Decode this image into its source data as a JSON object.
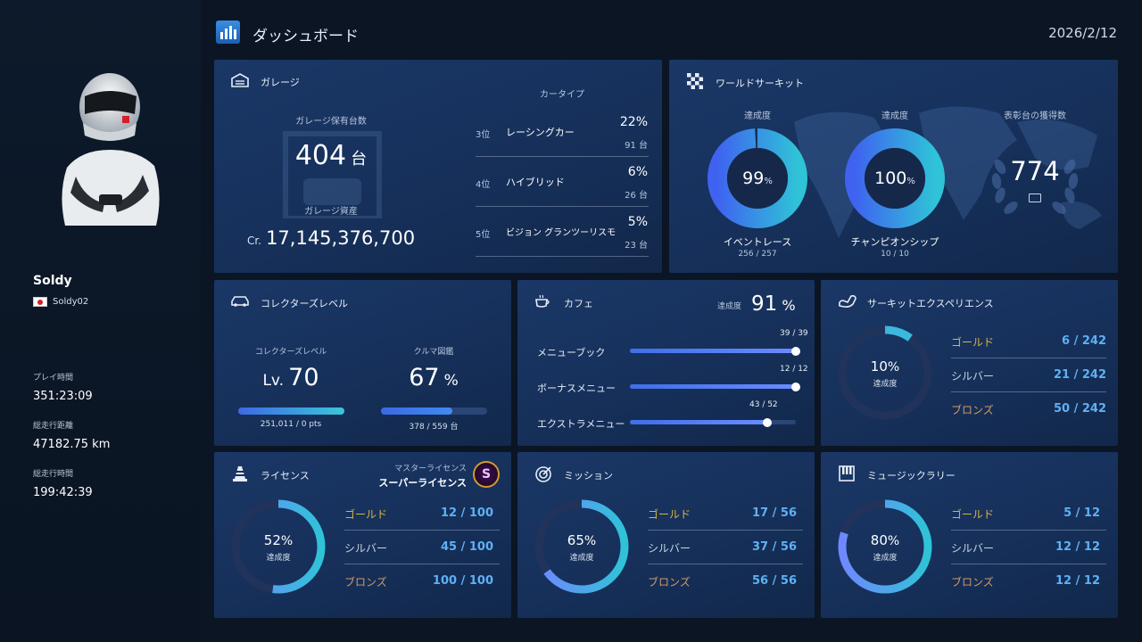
{
  "header": {
    "title": "ダッシュボード",
    "date": "2026/2/12"
  },
  "profile": {
    "name": "Soldy",
    "id": "Soldy02",
    "stats": [
      {
        "label": "プレイ時間",
        "value": "351:23:09"
      },
      {
        "label": "総走行距離",
        "value": "47182.75 km"
      },
      {
        "label": "総走行時間",
        "value": "199:42:39"
      }
    ]
  },
  "garage": {
    "title": "ガレージ",
    "count_label": "ガレージ保有台数",
    "count_value": "404",
    "count_unit": "台",
    "assets_label": "ガレージ資産",
    "assets_prefix": "Cr.",
    "assets_value": "17,145,376,700",
    "car_type_label": "カータイプ",
    "car_types": [
      {
        "rank": "3位",
        "name": "レーシングカー",
        "percent": "22%",
        "count": "91 台"
      },
      {
        "rank": "4位",
        "name": "ハイブリッド",
        "percent": "6%",
        "count": "26 台"
      },
      {
        "rank": "5位",
        "name": "ビジョン グランツーリスモ",
        "percent": "5%",
        "count": "23 台"
      }
    ]
  },
  "world_circuit": {
    "title": "ワールドサーキット",
    "rings": [
      {
        "label_top": "達成度",
        "percent": "99",
        "unit": "%",
        "name": "イベントレース",
        "progress": "256 / 257",
        "fraction": 0.99
      },
      {
        "label_top": "達成度",
        "percent": "100",
        "unit": "%",
        "name": "チャンピオンシップ",
        "progress": "10 / 10",
        "fraction": 1.0
      }
    ],
    "podium_label": "表彰台の獲得数",
    "podium_value": "774"
  },
  "collectors": {
    "title": "コレクターズレベル",
    "level_label": "コレクターズレベル",
    "level_prefix": "Lv.",
    "level_value": "70",
    "level_pts": "251,011 / 0 pts",
    "level_fraction": 1.0,
    "book_label": "クルマ図鑑",
    "book_value": "67",
    "book_unit": "%",
    "book_progress": "378 / 559 台",
    "book_fraction": 0.67
  },
  "cafe": {
    "title": "カフェ",
    "rate_label": "達成度",
    "rate_value": "91",
    "rate_unit": "%",
    "items": [
      {
        "name": "メニューブック",
        "progress": "39 / 39",
        "fraction": 1.0
      },
      {
        "name": "ボーナスメニュー",
        "progress": "12 / 12",
        "fraction": 1.0
      },
      {
        "name": "エクストラメニュー",
        "progress": "43 / 52",
        "fraction": 0.827
      }
    ]
  },
  "circuit_experience": {
    "title": "サーキットエクスペリエンス",
    "percent": "10",
    "unit": "%",
    "rate_label": "達成度",
    "fraction": 0.1,
    "medals": [
      {
        "label": "ゴールド",
        "value": "6 / 242"
      },
      {
        "label": "シルバー",
        "value": "21 / 242"
      },
      {
        "label": "ブロンズ",
        "value": "50 / 242"
      }
    ]
  },
  "license": {
    "title": "ライセンス",
    "master_label": "マスターライセンス",
    "master_value": "スーパーライセンス",
    "badge_letter": "S",
    "percent": "52",
    "unit": "%",
    "rate_label": "達成度",
    "fraction": 0.52,
    "medals": [
      {
        "label": "ゴールド",
        "value": "12 / 100"
      },
      {
        "label": "シルバー",
        "value": "45 / 100"
      },
      {
        "label": "ブロンズ",
        "value": "100 / 100"
      }
    ]
  },
  "mission": {
    "title": "ミッション",
    "percent": "65",
    "unit": "%",
    "rate_label": "達成度",
    "fraction": 0.65,
    "medals": [
      {
        "label": "ゴールド",
        "value": "17 / 56"
      },
      {
        "label": "シルバー",
        "value": "37 / 56"
      },
      {
        "label": "ブロンズ",
        "value": "56 / 56"
      }
    ]
  },
  "music_rally": {
    "title": "ミュージックラリー",
    "percent": "80",
    "unit": "%",
    "rate_label": "達成度",
    "fraction": 0.8,
    "medals": [
      {
        "label": "ゴールド",
        "value": "5 / 12"
      },
      {
        "label": "シルバー",
        "value": "12 / 12"
      },
      {
        "label": "ブロンズ",
        "value": "12 / 12"
      }
    ]
  }
}
